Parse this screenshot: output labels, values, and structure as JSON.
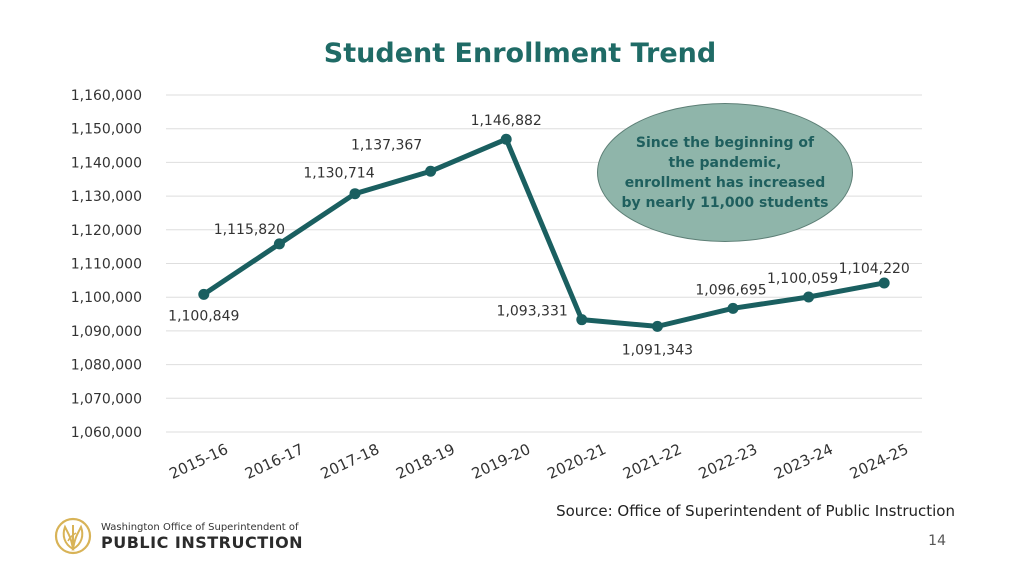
{
  "title": "Student Enrollment Trend",
  "callout_lines": [
    "Since the beginning of",
    "the pandemic,",
    "enrollment has increased",
    "by nearly 11,000 students"
  ],
  "source": "Source: Office of Superintendent of Public Instruction",
  "page_number": "14",
  "logo": {
    "line1": "Washington Office of Superintendent of",
    "line2": "PUBLIC INSTRUCTION"
  },
  "colors": {
    "line": "#1a5f60",
    "title": "#1f6b66",
    "grid": "#dedede",
    "callout_fill": "#8fb5aa",
    "logo_gold": "#d8b357"
  },
  "chart_data": {
    "type": "line",
    "title": "Student Enrollment Trend",
    "xlabel": "",
    "ylabel": "",
    "categories": [
      "2015-16",
      "2016-17",
      "2017-18",
      "2018-19",
      "2019-20",
      "2020-21",
      "2021-22",
      "2022-23",
      "2023-24",
      "2024-25"
    ],
    "values": [
      1100849,
      1115820,
      1130714,
      1137367,
      1146882,
      1093331,
      1091343,
      1096695,
      1100059,
      1104220
    ],
    "data_labels": [
      "1,100,849",
      "1,115,820",
      "1,130,714",
      "1,137,367",
      "1,146,882",
      "1,093,331",
      "1,091,343",
      "1,096,695",
      "1,100,059",
      "1,104,220"
    ],
    "ylim": [
      1060000,
      1160000
    ],
    "yticks": [
      1060000,
      1070000,
      1080000,
      1090000,
      1100000,
      1110000,
      1120000,
      1130000,
      1140000,
      1150000,
      1160000
    ],
    "ytick_labels": [
      "1,060,000",
      "1,070,000",
      "1,080,000",
      "1,090,000",
      "1,100,000",
      "1,110,000",
      "1,120,000",
      "1,130,000",
      "1,140,000",
      "1,150,000",
      "1,160,000"
    ],
    "grid": true,
    "legend": "none"
  }
}
